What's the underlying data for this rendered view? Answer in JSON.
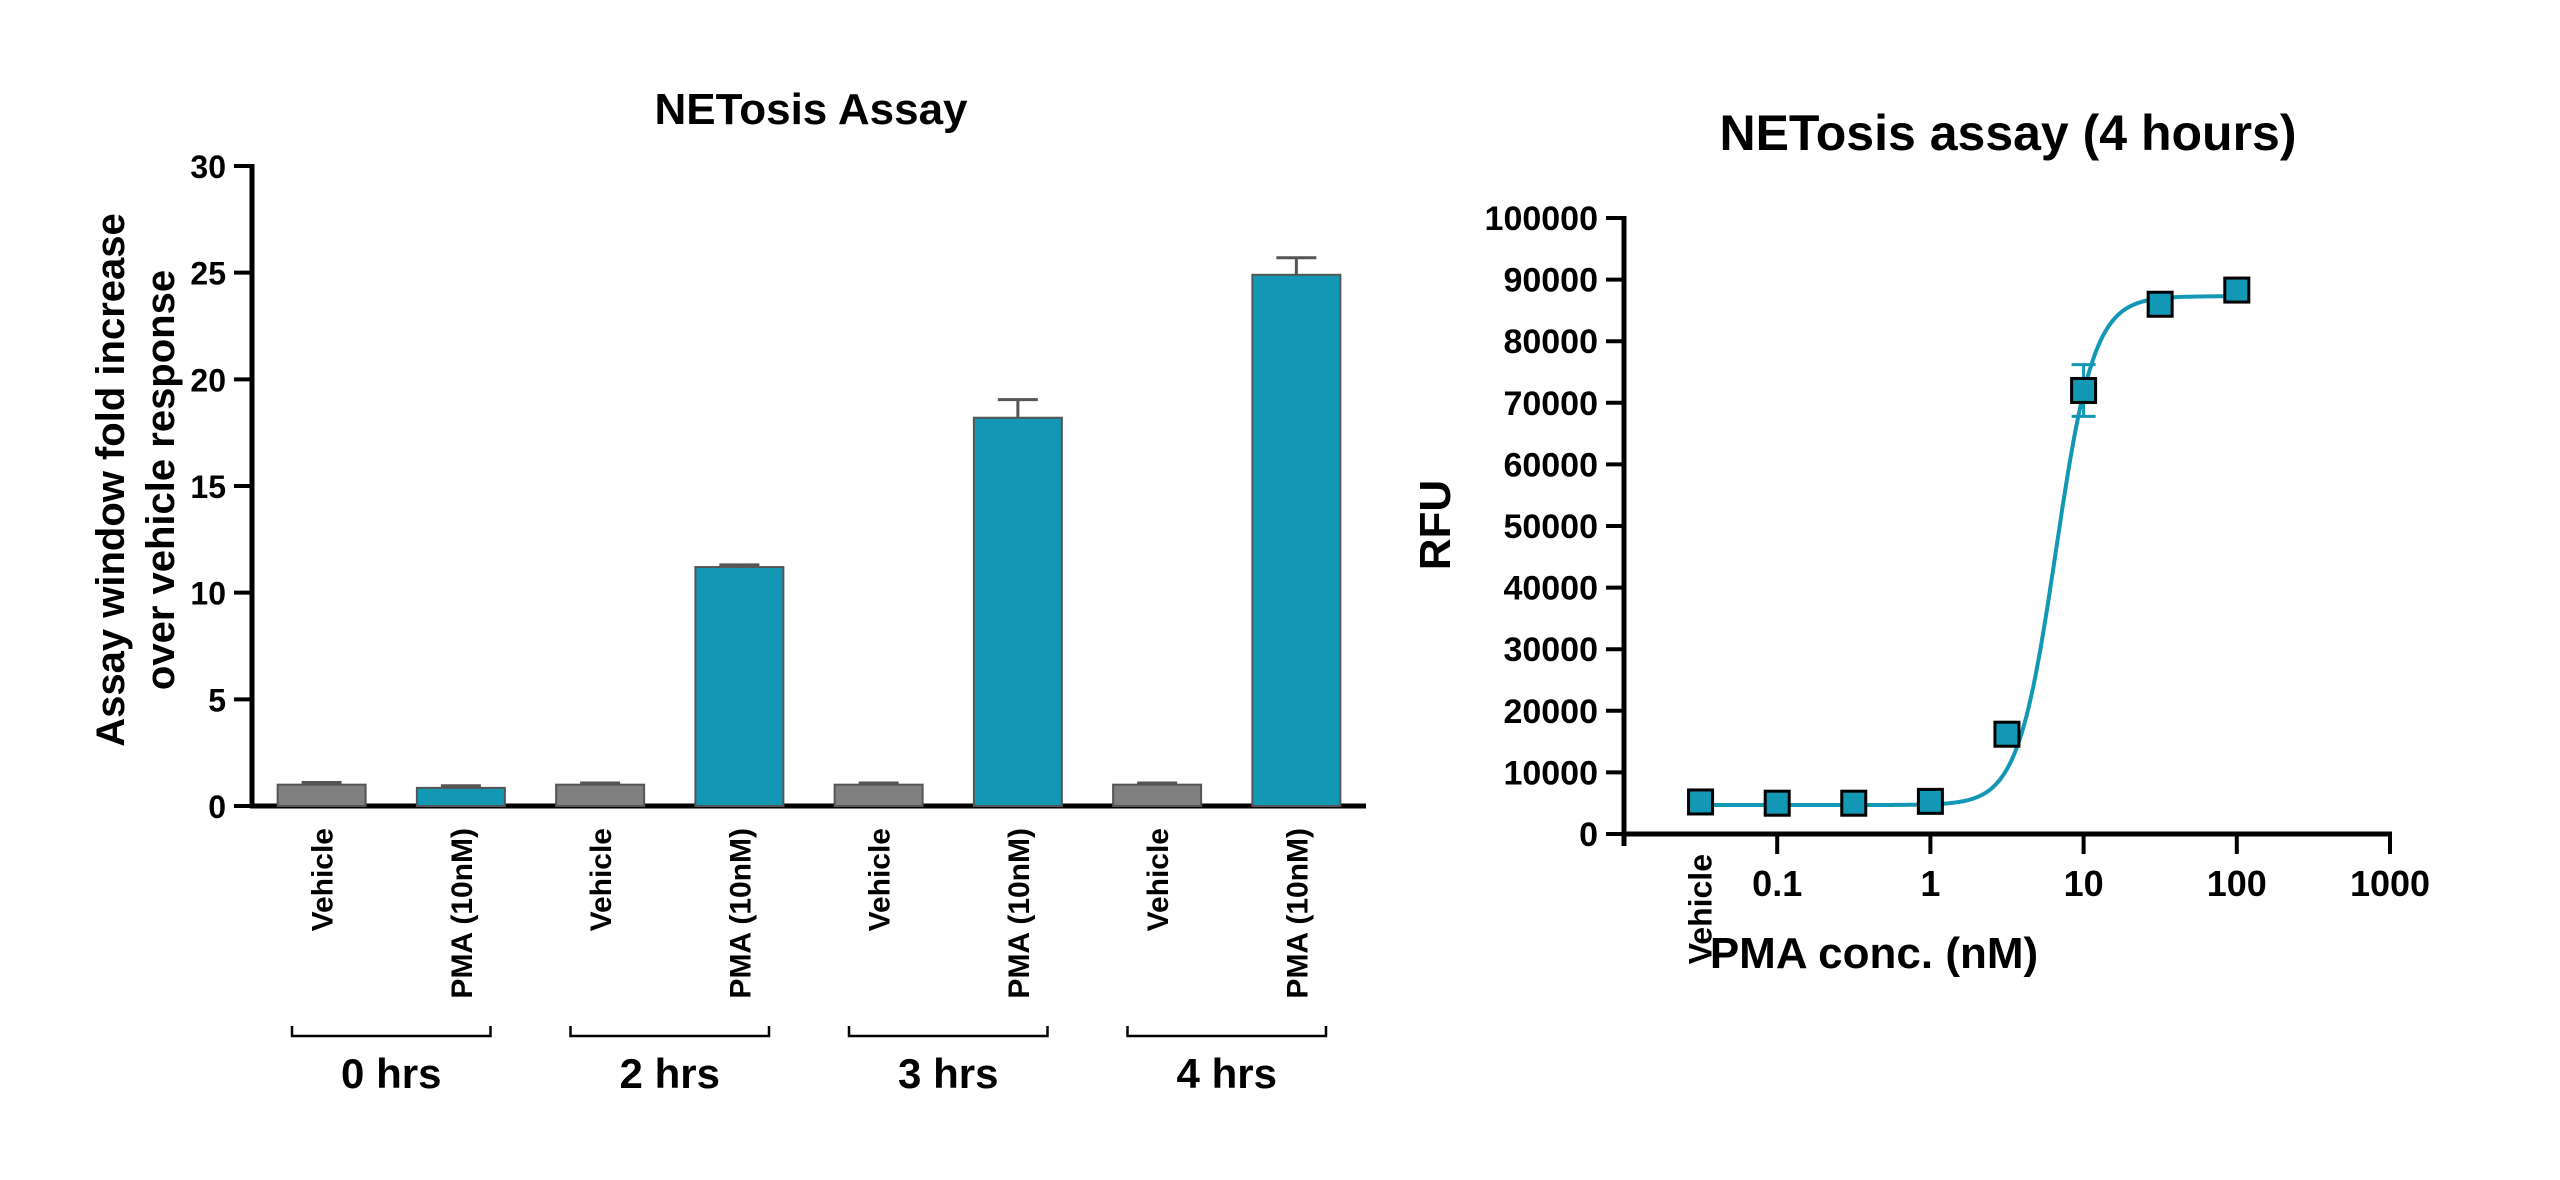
{
  "chart_data": [
    {
      "type": "bar",
      "title": "NETosis Assay",
      "ylabel_lines": [
        "Assay window fold increase",
        "over vehicle response"
      ],
      "ylim": [
        0,
        30
      ],
      "yticks": [
        0,
        5,
        10,
        15,
        20,
        25,
        30
      ],
      "categories": [
        "Vehicle",
        "PMA (10nM)",
        "Vehicle",
        "PMA (10nM)",
        "Vehicle",
        "PMA (10nM)",
        "Vehicle",
        "PMA (10nM)"
      ],
      "groups": [
        "0 hrs",
        "2 hrs",
        "3 hrs",
        "4 hrs"
      ],
      "values": [
        1.0,
        0.85,
        1.0,
        11.2,
        1.0,
        18.2,
        1.0,
        24.9
      ],
      "errors": [
        0.1,
        0.1,
        0.08,
        0.1,
        0.08,
        0.85,
        0.08,
        0.8
      ],
      "colors": {
        "vehicle": "#808080",
        "pma": "#1297b5"
      },
      "grid": false
    },
    {
      "type": "scatter",
      "title": "NETosis assay (4 hours)",
      "xlabel": "PMA conc. (nM)",
      "ylabel": "RFU",
      "xscale": "log",
      "xlim": [
        0.01,
        1000
      ],
      "xticks": [
        "0.1",
        "1",
        "10",
        "100",
        "1000"
      ],
      "vehicle_label": "Vehicle",
      "ylim": [
        0,
        100000
      ],
      "yticks": [
        0,
        10000,
        20000,
        30000,
        40000,
        50000,
        60000,
        70000,
        80000,
        90000,
        100000
      ],
      "points": [
        {
          "x": "Vehicle",
          "y": 5200
        },
        {
          "x": 0.1,
          "y": 5000
        },
        {
          "x": 0.316,
          "y": 5000
        },
        {
          "x": 1,
          "y": 5300
        },
        {
          "x": 3.16,
          "y": 16200,
          "err": 1800
        },
        {
          "x": 10,
          "y": 72000,
          "err": 4200
        },
        {
          "x": 31.6,
          "y": 86000
        },
        {
          "x": 100,
          "y": 88300
        }
      ],
      "fit": {
        "bottom": 4700,
        "top": 87300,
        "ec50": 6.6,
        "hill": 3.5
      },
      "color": "#1297b5",
      "grid": false
    }
  ]
}
